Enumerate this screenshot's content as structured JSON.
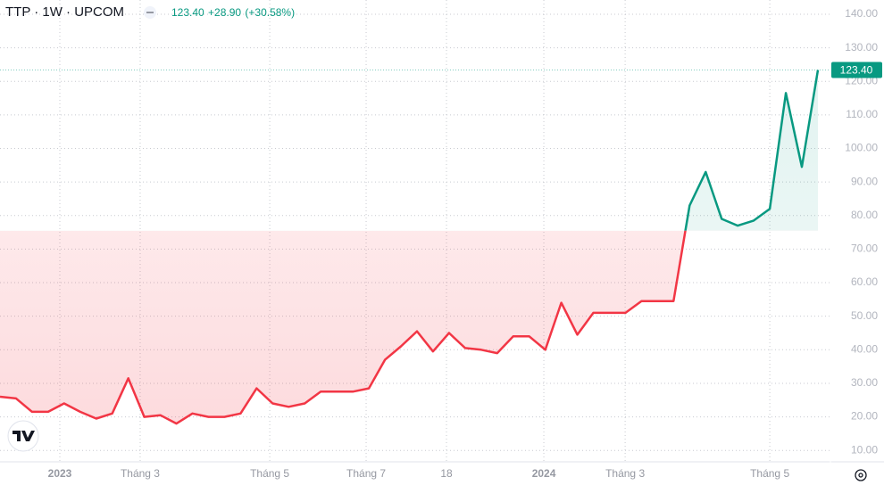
{
  "chart_data": {
    "type": "baseline",
    "title": "TTP · 1W · UPCOM",
    "header": {
      "price": "123.40",
      "change": "+28.90",
      "change_pct": "(+30.58%)"
    },
    "x": [
      0,
      1,
      2,
      3,
      4,
      5,
      6,
      7,
      8,
      9,
      10,
      11,
      12,
      13,
      14,
      15,
      16,
      17,
      18,
      19,
      20,
      21,
      22,
      23,
      24,
      25,
      26,
      27,
      28,
      29,
      30,
      31,
      32,
      33,
      34,
      35,
      36,
      37,
      38,
      39,
      40,
      41,
      42,
      43,
      44,
      45,
      46,
      47,
      48,
      49,
      50,
      51
    ],
    "values": [
      26,
      25.5,
      21.5,
      21.5,
      24,
      21.5,
      19.5,
      21,
      31.5,
      20,
      20.5,
      18,
      21,
      20,
      20,
      21,
      28.5,
      24,
      23,
      24,
      27.5,
      27.5,
      27.5,
      28.5,
      37,
      41,
      45.5,
      39.5,
      45,
      40.5,
      40,
      39,
      44,
      44,
      40,
      54,
      44.5,
      51,
      51,
      51,
      54.5,
      54.5,
      54.5,
      83,
      93,
      79,
      77,
      78.5,
      82,
      116.5,
      94.5,
      123.4
    ],
    "baseline": 75.5,
    "up_color": "#089981",
    "down_color": "#f23645",
    "xlim": [
      0,
      51.78
    ],
    "xticks": [
      {
        "value": 3.73,
        "label": "2023"
      },
      {
        "value": 8.74,
        "label": "Tháng 3"
      },
      {
        "value": 16.82,
        "label": "Tháng 5"
      },
      {
        "value": 22.83,
        "label": "Tháng 7"
      },
      {
        "value": 27.84,
        "label": "18"
      },
      {
        "value": 33.91,
        "label": "2024"
      },
      {
        "value": 38.98,
        "label": "Tháng 3"
      },
      {
        "value": 48.0,
        "label": "Tháng 5"
      }
    ],
    "bold_xticks": [
      "2023",
      "2024"
    ],
    "ylim": [
      6.6,
      144.25
    ],
    "yticks": [
      {
        "value": 10,
        "label": "10.00"
      },
      {
        "value": 20,
        "label": "20.00"
      },
      {
        "value": 30,
        "label": "30.00"
      },
      {
        "value": 40,
        "label": "40.00"
      },
      {
        "value": 50,
        "label": "50.00"
      },
      {
        "value": 60,
        "label": "60.00"
      },
      {
        "value": 70,
        "label": "70.00"
      },
      {
        "value": 80,
        "label": "80.00"
      },
      {
        "value": 90,
        "label": "90.00"
      },
      {
        "value": 100,
        "label": "100.00"
      },
      {
        "value": 110,
        "label": "110.00"
      },
      {
        "value": 120,
        "label": "120.00"
      },
      {
        "value": 130,
        "label": "130.00"
      },
      {
        "value": 140,
        "label": "140.00"
      }
    ],
    "grid": true
  }
}
